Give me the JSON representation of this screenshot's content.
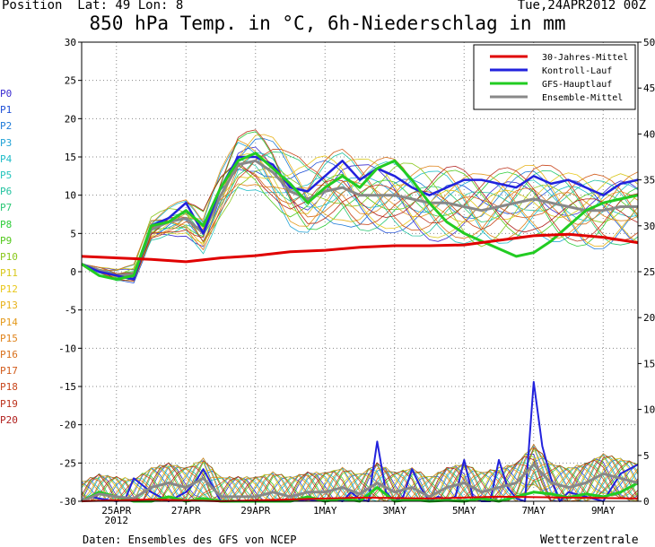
{
  "header": {
    "position": "Position  Lat: 49 Lon: 8",
    "run": "Tue,24APR2012 00Z"
  },
  "footer": {
    "source": "Daten: Ensembles des GFS von NCEP",
    "brand": "Wetterzentrale"
  },
  "colors": {
    "mean30": "#e00000",
    "control": "#2222dd",
    "gfs": "#22cc22",
    "ens_mean": "#888888",
    "grid": "#888888"
  },
  "members": [
    {
      "name": "P0",
      "color": "#3a2ad0"
    },
    {
      "name": "P1",
      "color": "#1f4fd6"
    },
    {
      "name": "P2",
      "color": "#1e7ad8"
    },
    {
      "name": "P3",
      "color": "#21a2d6"
    },
    {
      "name": "P4",
      "color": "#1fbcc8"
    },
    {
      "name": "P5",
      "color": "#24c4bc"
    },
    {
      "name": "P6",
      "color": "#22c2a0"
    },
    {
      "name": "P7",
      "color": "#2ac874"
    },
    {
      "name": "P8",
      "color": "#2ecc3a"
    },
    {
      "name": "P9",
      "color": "#52c81c"
    },
    {
      "name": "P10",
      "color": "#8ac81c"
    },
    {
      "name": "P11",
      "color": "#d8c81c"
    },
    {
      "name": "P12",
      "color": "#e8c81c"
    },
    {
      "name": "P13",
      "color": "#e8b21c"
    },
    {
      "name": "P14",
      "color": "#e49a1c"
    },
    {
      "name": "P15",
      "color": "#e0841c"
    },
    {
      "name": "P16",
      "color": "#d8701c"
    },
    {
      "name": "P17",
      "color": "#d25c1c"
    },
    {
      "name": "P18",
      "color": "#c8461c"
    },
    {
      "name": "P19",
      "color": "#bc321c"
    },
    {
      "name": "P20",
      "color": "#b01e1c"
    }
  ],
  "chart_data": {
    "type": "line",
    "title": "850 hPa Temp. in °C, 6h-Niederschlag in mm",
    "x_unit": "days from 24APR2012 00Z",
    "xlim": [
      0,
      16
    ],
    "x_ticks": [
      {
        "x": 1,
        "label": "25APR",
        "sub": "2012"
      },
      {
        "x": 3,
        "label": "27APR",
        "sub": ""
      },
      {
        "x": 5,
        "label": "29APR",
        "sub": ""
      },
      {
        "x": 7,
        "label": "1MAY",
        "sub": ""
      },
      {
        "x": 9,
        "label": "3MAY",
        "sub": ""
      },
      {
        "x": 11,
        "label": "5MAY",
        "sub": ""
      },
      {
        "x": 13,
        "label": "7MAY",
        "sub": ""
      },
      {
        "x": 15,
        "label": "9MAY",
        "sub": ""
      }
    ],
    "y_left": {
      "min": -30,
      "max": 30,
      "step": 5,
      "labels": [
        "30",
        "25",
        "20",
        "15",
        "10",
        "5",
        "0",
        "-5",
        "-10",
        "-15",
        "-20",
        "-25",
        "-30"
      ]
    },
    "y_right": {
      "min": 0,
      "max": 50,
      "step": 5,
      "labels": [
        "50",
        "45",
        "40",
        "35",
        "30",
        "25",
        "20",
        "15",
        "10",
        "5",
        "0"
      ]
    },
    "grid": true,
    "legend": {
      "position": "top-right",
      "entries": [
        "30-Jahres-Mittel",
        "Kontroll-Lauf",
        "GFS-Hauptlauf",
        "Ensemble-Mittel"
      ]
    },
    "temp_series": [
      {
        "name": "30-Jahres-Mittel",
        "color": "#e00000",
        "width": 3,
        "x": [
          0,
          1,
          2,
          3,
          4,
          5,
          6,
          7,
          8,
          9,
          10,
          11,
          12,
          13,
          14,
          15,
          16
        ],
        "y": [
          2,
          1.8,
          1.6,
          1.3,
          1.8,
          2.1,
          2.6,
          2.8,
          3.2,
          3.4,
          3.4,
          3.5,
          4.1,
          4.7,
          4.9,
          4.5,
          3.8
        ]
      },
      {
        "name": "Kontroll-Lauf",
        "color": "#2222dd",
        "width": 2.5,
        "x": [
          0,
          0.5,
          1,
          1.5,
          2,
          2.5,
          3,
          3.5,
          4,
          4.5,
          5,
          5.5,
          6,
          6.5,
          7,
          7.5,
          8,
          8.5,
          9,
          9.5,
          10,
          10.5,
          11,
          11.5,
          12,
          12.5,
          13,
          13.5,
          14,
          14.5,
          15,
          15.5,
          16
        ],
        "y": [
          1,
          0,
          -0.5,
          -1,
          6,
          7,
          9,
          5,
          11,
          15,
          15,
          14,
          11,
          10.5,
          12.5,
          14.5,
          12,
          13.5,
          12.5,
          11,
          10,
          11,
          12,
          12,
          11.5,
          11,
          12.5,
          11.5,
          12,
          11,
          10,
          11.5,
          12
        ]
      },
      {
        "name": "GFS-Hauptlauf",
        "color": "#22cc22",
        "width": 3,
        "x": [
          0,
          0.5,
          1,
          1.5,
          2,
          2.5,
          3,
          3.5,
          4,
          4.5,
          5,
          5.5,
          6,
          6.5,
          7,
          7.5,
          8,
          8.5,
          9,
          9.5,
          10,
          10.5,
          11,
          11.5,
          12,
          12.5,
          13,
          13.5,
          14,
          14.5,
          15,
          15.5,
          16
        ],
        "y": [
          1,
          -0.5,
          -1,
          -0.5,
          6,
          6.5,
          8,
          6,
          11,
          14.5,
          15.5,
          13.5,
          11.5,
          9,
          11,
          12.5,
          11,
          13.5,
          14.5,
          12,
          9,
          6.5,
          5,
          4,
          3,
          2,
          2.5,
          4,
          6,
          8,
          9,
          9.5,
          10
        ]
      },
      {
        "name": "Ensemble-Mittel",
        "color": "#888888",
        "width": 3,
        "x": [
          0,
          0.5,
          1,
          1.5,
          2,
          2.5,
          3,
          3.5,
          4,
          4.5,
          5,
          5.5,
          6,
          6.5,
          7,
          7.5,
          8,
          8.5,
          9,
          9.5,
          10,
          10.5,
          11,
          11.5,
          12,
          12.5,
          13,
          13.5,
          14,
          14.5,
          15,
          15.5,
          16
        ],
        "y": [
          1,
          0.2,
          -0.5,
          -0.3,
          5.5,
          6.5,
          7,
          5,
          10,
          14,
          14.5,
          13,
          10.5,
          9.5,
          10.5,
          11,
          10,
          10,
          10,
          9.5,
          9,
          9,
          8.5,
          8,
          8.5,
          9,
          9.5,
          9,
          8.5,
          8,
          8,
          8.5,
          8.5
        ]
      }
    ],
    "precip_series": [
      {
        "name": "Kontroll-Lauf",
        "color": "#2222dd",
        "width": 2,
        "x": [
          0,
          0.25,
          0.5,
          1,
          1.25,
          1.5,
          2,
          2.25,
          2.5,
          3,
          3.25,
          3.5,
          4,
          5,
          6,
          6.5,
          7,
          7.25,
          7.5,
          7.75,
          8,
          8.25,
          8.5,
          8.75,
          9,
          9.25,
          9.5,
          9.75,
          10,
          10.25,
          10.5,
          10.75,
          11,
          11.25,
          11.5,
          11.75,
          12,
          12.25,
          12.5,
          12.75,
          13,
          13.25,
          13.5,
          13.75,
          14,
          14.5,
          15,
          15.5,
          16
        ],
        "y": [
          0,
          0.5,
          0.3,
          0,
          0.2,
          2.5,
          1,
          0.5,
          0,
          1,
          2,
          3.5,
          0,
          0,
          0,
          0.2,
          0,
          0.3,
          0,
          1,
          0.2,
          0,
          6.5,
          1,
          0,
          0.5,
          3.5,
          1.5,
          0,
          0.5,
          0.2,
          0.5,
          4.5,
          0.5,
          0,
          0,
          4.5,
          1.5,
          0.3,
          0,
          13,
          6,
          2.5,
          0,
          1,
          0.5,
          0,
          3,
          4
        ]
      },
      {
        "name": "GFS-Hauptlauf",
        "color": "#22cc22",
        "width": 3,
        "x": [
          0,
          0.5,
          1,
          1.5,
          2,
          2.5,
          3,
          3.5,
          4,
          5,
          6,
          6.5,
          7,
          7.5,
          8,
          8.5,
          9,
          9.5,
          10,
          10.5,
          11,
          11.5,
          12,
          12.5,
          13,
          13.5,
          14,
          14.5,
          15,
          15.5,
          16
        ],
        "y": [
          0,
          1,
          0.5,
          0,
          0,
          0.5,
          0,
          0.3,
          0,
          0,
          0,
          0.5,
          0,
          0.3,
          0,
          1.5,
          0,
          0.2,
          0,
          0.1,
          0,
          0.3,
          0,
          0.5,
          1,
          0.8,
          0.4,
          0.8,
          0.5,
          1,
          2
        ]
      },
      {
        "name": "Ensemble-Mittel",
        "color": "#888888",
        "width": 3,
        "x": [
          0,
          0.5,
          1,
          1.5,
          2,
          2.5,
          3,
          3.5,
          4,
          5,
          5.5,
          6,
          6.5,
          7,
          7.5,
          8,
          8.5,
          9,
          9.5,
          10,
          10.5,
          11,
          11.5,
          12,
          12.5,
          13,
          13.5,
          14,
          14.5,
          15,
          15.5,
          16
        ],
        "y": [
          0,
          0.8,
          0.5,
          0.3,
          1.5,
          2,
          1.5,
          2.5,
          0.5,
          0.5,
          1,
          0.5,
          1,
          1,
          1.5,
          0.8,
          2,
          1,
          1.5,
          0.5,
          1.5,
          2,
          1,
          1.5,
          2,
          4,
          2,
          1.5,
          2,
          3,
          2.5,
          2
        ]
      },
      {
        "name": "30-Jahres-Mittel",
        "color": "#e00000",
        "width": 2,
        "x": [
          0,
          2,
          4,
          6,
          8,
          10,
          12,
          14,
          16
        ],
        "y": [
          0,
          0.2,
          0,
          0.2,
          0.4,
          0.3,
          0.5,
          0.4,
          0.3
        ]
      }
    ]
  }
}
